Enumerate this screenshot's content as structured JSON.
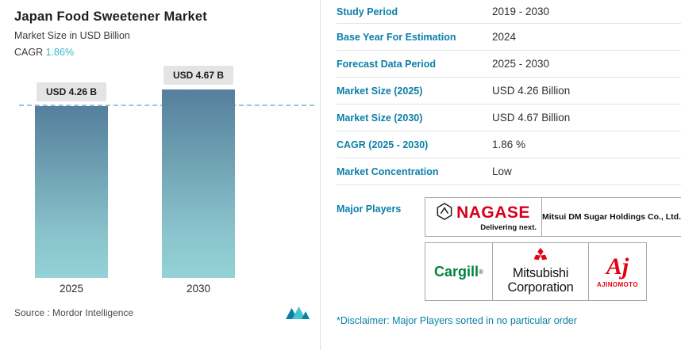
{
  "accent_teal": "#0a7fa8",
  "chart": {
    "title": "Japan Food Sweetener Market",
    "subtitle": "Market Size in USD Billion",
    "cagr_label": "CAGR",
    "cagr_value": "1.86%",
    "source_label": "Source :",
    "source_value": "Mordor Intelligence",
    "chart_data": {
      "type": "bar",
      "categories": [
        "2025",
        "2030"
      ],
      "values": [
        4.26,
        4.67
      ],
      "bar_labels": [
        "USD 4.26 B",
        "USD 4.67 B"
      ],
      "title": "Japan Food Sweetener Market",
      "xlabel": "",
      "ylabel": "Market Size in USD Billion",
      "ylim": [
        0,
        4.67
      ],
      "reference_line": 4.26,
      "grid": false,
      "legend": "none",
      "bar_gradient": [
        "#557f9d",
        "#93d2d6"
      ]
    }
  },
  "summary": {
    "rows": [
      {
        "label": "Study Period",
        "value": "2019 - 2030"
      },
      {
        "label": "Base Year For Estimation",
        "value": "2024"
      },
      {
        "label": "Forecast Data Period",
        "value": "2025 - 2030"
      },
      {
        "label": "Market Size (2025)",
        "value": "USD 4.26 Billion"
      },
      {
        "label": "Market Size (2030)",
        "value": "USD 4.67 Billion"
      },
      {
        "label": "CAGR (2025 - 2030)",
        "value": "1.86 %"
      },
      {
        "label": "Market Concentration",
        "value": "Low"
      }
    ],
    "major_players_label": "Major Players",
    "players": {
      "nagase": {
        "name": "NAGASE",
        "tagline": "Delivering next."
      },
      "mitsui": {
        "name": "Mitsui DM Sugar Holdings Co., Ltd."
      },
      "cargill": {
        "name": "Cargill"
      },
      "mitsubishi": {
        "name_line1": "Mitsubishi",
        "name_line2": "Corporation"
      },
      "ajinomoto": {
        "script": "Aj",
        "name": "AJINOMOTO"
      }
    },
    "disclaimer": "*Disclaimer: Major Players sorted in no particular order"
  }
}
